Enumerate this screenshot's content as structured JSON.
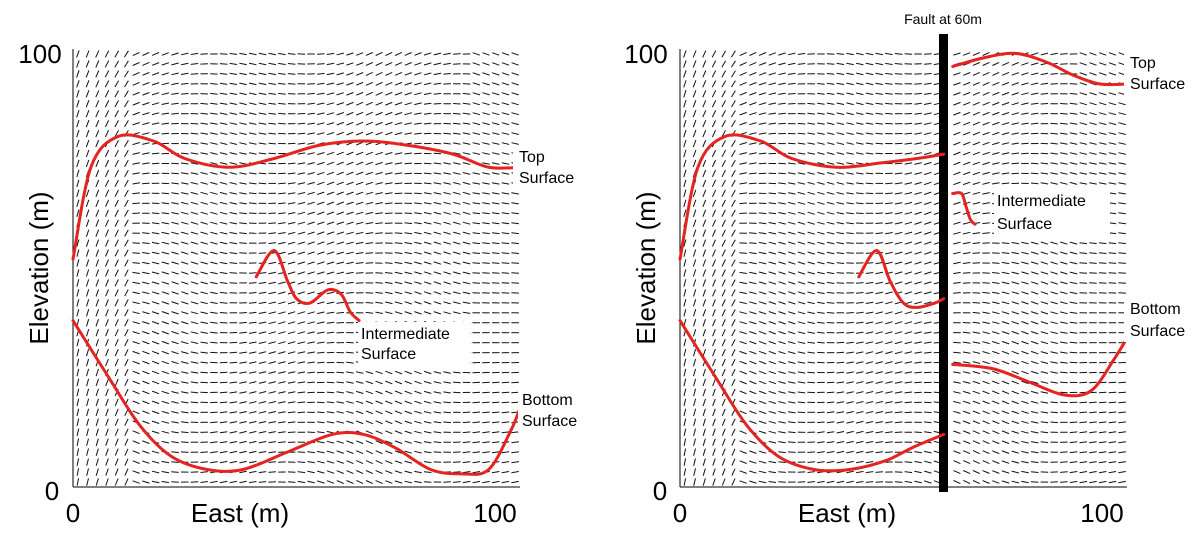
{
  "panels": [
    {
      "id": "left",
      "x_ticks": [
        "0",
        "100"
      ],
      "y_ticks": [
        "0",
        "100"
      ],
      "xlabel": "East (m)",
      "ylabel": "Elevation (m)",
      "labels": {
        "top": [
          "Top",
          "Surface"
        ],
        "intermediate": [
          "Intermediate",
          "Surface"
        ],
        "bottom": [
          "Bottom",
          "Surface"
        ]
      }
    },
    {
      "id": "right",
      "x_ticks": [
        "0",
        "100"
      ],
      "y_ticks": [
        "0",
        "100"
      ],
      "xlabel": "East (m)",
      "ylabel": "Elevation (m)",
      "fault_label": "Fault at 60m",
      "labels": {
        "top": [
          "Top",
          "Surface"
        ],
        "intermediate": [
          "Intermediate",
          "Surface"
        ],
        "bottom": [
          "Bottom",
          "Surface"
        ]
      }
    }
  ],
  "surfaces": {
    "left": {
      "top": [
        [
          0,
          52
        ],
        [
          4,
          73
        ],
        [
          10,
          80
        ],
        [
          18,
          79
        ],
        [
          25,
          75
        ],
        [
          35,
          73
        ],
        [
          45,
          75
        ],
        [
          55,
          78
        ],
        [
          65,
          79
        ],
        [
          75,
          78
        ],
        [
          85,
          76
        ],
        [
          93,
          73
        ],
        [
          100,
          73
        ]
      ],
      "intermediate": [
        [
          41,
          48
        ],
        [
          45,
          54
        ],
        [
          48,
          47
        ],
        [
          50,
          43
        ],
        [
          53,
          42
        ],
        [
          57,
          45
        ],
        [
          60,
          44
        ],
        [
          62,
          40
        ],
        [
          64,
          38
        ]
      ],
      "bottom": [
        [
          0,
          38
        ],
        [
          8,
          25
        ],
        [
          15,
          14
        ],
        [
          22,
          7
        ],
        [
          30,
          4
        ],
        [
          38,
          4
        ],
        [
          48,
          8
        ],
        [
          58,
          12
        ],
        [
          65,
          12
        ],
        [
          72,
          9
        ],
        [
          80,
          4
        ],
        [
          87,
          3
        ],
        [
          93,
          4
        ],
        [
          98,
          13
        ],
        [
          100,
          18
        ]
      ]
    },
    "right": {
      "top_west": [
        [
          0,
          52
        ],
        [
          4,
          73
        ],
        [
          10,
          80
        ],
        [
          18,
          79
        ],
        [
          25,
          75
        ],
        [
          35,
          73
        ],
        [
          45,
          74
        ],
        [
          53,
          75
        ],
        [
          59,
          76
        ]
      ],
      "top_east": [
        [
          61,
          96
        ],
        [
          68,
          98
        ],
        [
          75,
          99
        ],
        [
          82,
          97
        ],
        [
          88,
          94
        ],
        [
          94,
          92
        ],
        [
          100,
          92
        ]
      ],
      "intermediate_west": [
        [
          40,
          48
        ],
        [
          44,
          54
        ],
        [
          47,
          47
        ],
        [
          50,
          42
        ],
        [
          53,
          41
        ],
        [
          57,
          42
        ],
        [
          59,
          43
        ]
      ],
      "intermediate_east": [
        [
          61,
          67
        ],
        [
          63,
          67
        ],
        [
          64,
          64
        ],
        [
          65,
          61
        ],
        [
          66,
          60
        ]
      ],
      "bottom_west": [
        [
          0,
          38
        ],
        [
          8,
          25
        ],
        [
          15,
          14
        ],
        [
          22,
          7
        ],
        [
          30,
          4
        ],
        [
          38,
          4
        ],
        [
          46,
          6
        ],
        [
          52,
          9
        ],
        [
          59,
          12
        ]
      ],
      "bottom_east": [
        [
          61,
          28
        ],
        [
          70,
          27
        ],
        [
          78,
          24
        ],
        [
          86,
          21
        ],
        [
          92,
          22
        ],
        [
          97,
          29
        ],
        [
          100,
          34
        ]
      ]
    }
  },
  "colors": {
    "surface": "#e52421",
    "fault": "#000000",
    "dash": "#111111",
    "axis": "#000000"
  }
}
